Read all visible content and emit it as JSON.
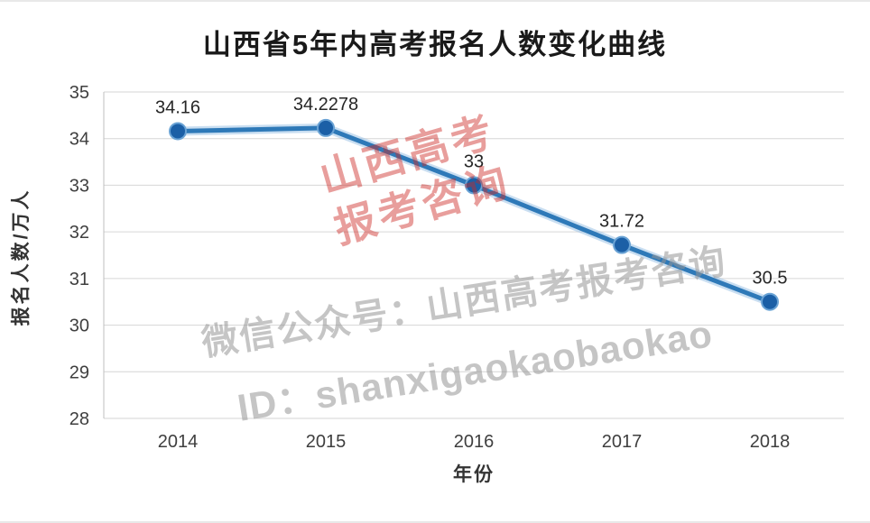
{
  "title": "山西省5年内高考报名人数变化曲线",
  "chart_data": {
    "type": "line",
    "x": [
      "2014",
      "2015",
      "2016",
      "2017",
      "2018"
    ],
    "values": [
      34.16,
      34.2278,
      33,
      31.72,
      30.5
    ],
    "point_labels": [
      "34.16",
      "34.2278",
      "33",
      "31.72",
      "30.5"
    ],
    "title": "山西省5年内高考报名人数变化曲线",
    "xlabel": "年份",
    "ylabel": "报名人数/万人",
    "ylim": [
      28,
      35
    ],
    "ytick_step": 1,
    "grid": true,
    "legend": "none",
    "line_color": "#2e79b8",
    "line_halo_color": "#9dc3e6",
    "marker_fill": "#1b5fa6",
    "marker_stroke": "#6aa3d5",
    "grid_color": "#d6d6d6",
    "axis_color": "#bfbfbf",
    "tick_color": "#3f3f3f",
    "label_color": "#262626"
  },
  "watermarks": {
    "red_line1": "山西高考",
    "red_line2": "报考咨询",
    "gray_line1": "微信公众号：山西高考报考咨询",
    "gray_line2": "ID：shanxigaokaobaokao"
  }
}
